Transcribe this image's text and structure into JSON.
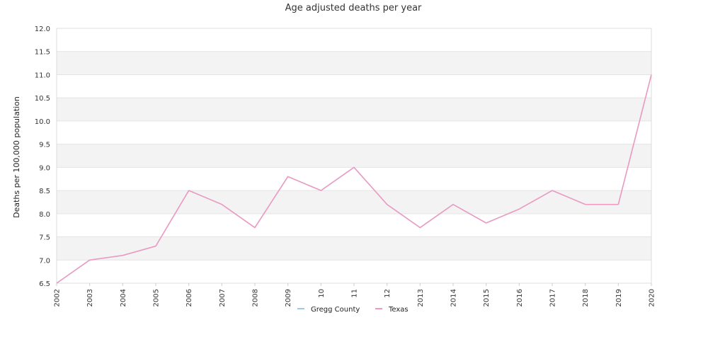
{
  "chart_data": {
    "type": "line",
    "title": "Age adjusted deaths per year",
    "xlabel": "",
    "ylabel": "Deaths per 100,000 population",
    "categories": [
      "2002",
      "2003",
      "2004",
      "2005",
      "2006",
      "2007",
      "2008",
      "2009",
      "10",
      "11",
      "12",
      "2013",
      "2014",
      "2015",
      "2016",
      "2017",
      "2018",
      "2019",
      "2020"
    ],
    "ylim": [
      6.5,
      12.0
    ],
    "yticks": [
      "6.5",
      "7.0",
      "7.5",
      "8.0",
      "8.5",
      "9.0",
      "9.5",
      "10.0",
      "10.5",
      "11.0",
      "11.5",
      "12.0"
    ],
    "grid": true,
    "legend_position": "bottom",
    "series": [
      {
        "name": "Gregg County",
        "color": "#9ecae1",
        "values": [
          6.5,
          7.0,
          7.1,
          7.3,
          8.5,
          8.2,
          7.7,
          8.8,
          8.5,
          9.0,
          8.2,
          7.7,
          8.2,
          7.8,
          8.1,
          8.5,
          8.2,
          8.2,
          11.0
        ]
      },
      {
        "name": "Texas",
        "color": "#f197c0",
        "values": [
          6.5,
          7.0,
          7.1,
          7.3,
          8.5,
          8.2,
          7.7,
          8.8,
          8.5,
          9.0,
          8.2,
          7.7,
          8.2,
          7.8,
          8.1,
          8.5,
          8.2,
          8.2,
          11.0
        ]
      }
    ]
  }
}
